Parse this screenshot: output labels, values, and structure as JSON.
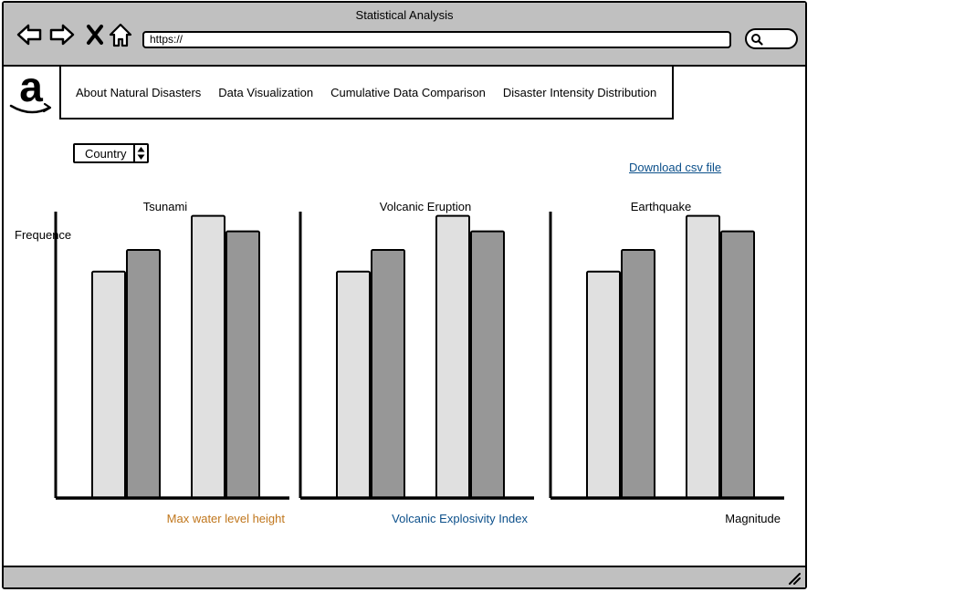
{
  "window": {
    "title": "Statistical Analysis"
  },
  "browser": {
    "url": "https://",
    "icons": [
      "back-arrow-icon",
      "forward-arrow-icon",
      "close-x-icon",
      "home-icon",
      "search-icon",
      "resize-grip-icon"
    ]
  },
  "logo": {
    "name": "amazon-logo-icon"
  },
  "nav": {
    "items": [
      "About Natural Disasters",
      "Data Visualization",
      "Cumulative Data Comparison",
      "Disaster Intensity Distribution"
    ]
  },
  "filter": {
    "country_label": "Country"
  },
  "download": {
    "label": "Download csv file"
  },
  "y_axis_label": "Frequence",
  "colors": {
    "bar_light": "#e0e0e0",
    "bar_dark": "#979797",
    "orange_label": "#c0761c",
    "blue_label": "#0b4f8a"
  },
  "chart_data": [
    {
      "type": "bar",
      "title": "Tsunami",
      "xlabel": "Max water level height",
      "ylabel": "Frequence",
      "ylim": [
        0,
        100
      ],
      "values": [
        73,
        80,
        91,
        86
      ],
      "xlabel_color": "#c0761c"
    },
    {
      "type": "bar",
      "title": "Volcanic Eruption",
      "xlabel": "Volcanic Explosivity Index",
      "ylabel": "",
      "ylim": [
        0,
        100
      ],
      "values": [
        73,
        80,
        91,
        86
      ],
      "xlabel_color": "#0b4f8a"
    },
    {
      "type": "bar",
      "title": "Earthquake",
      "xlabel": "Magnitude",
      "ylabel": "",
      "ylim": [
        0,
        100
      ],
      "values": [
        73,
        80,
        91,
        86
      ],
      "xlabel_color": "#000000"
    }
  ]
}
